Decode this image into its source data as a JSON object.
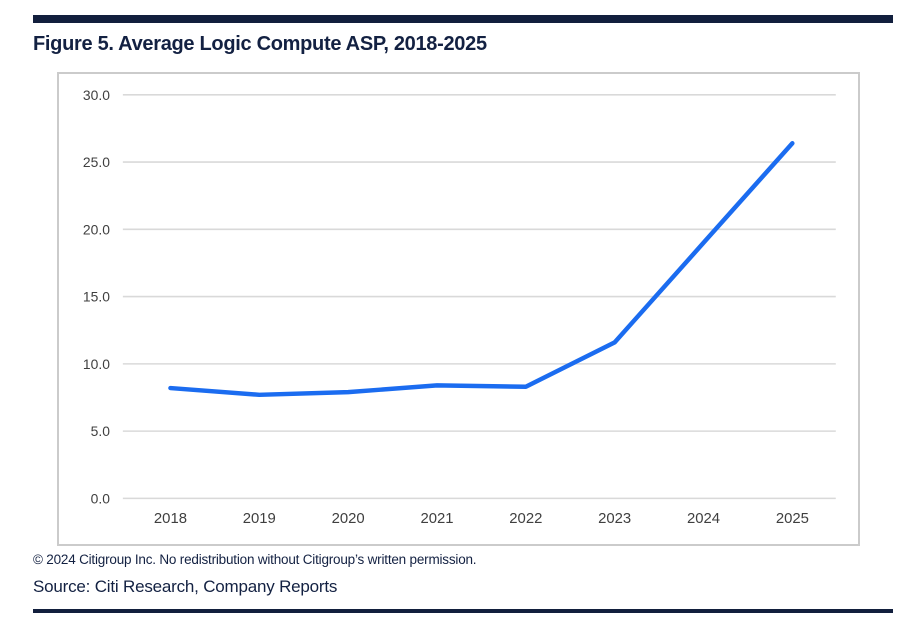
{
  "header": {
    "title": "Figure 5. Average Logic Compute ASP, 2018-2025"
  },
  "chart_data": {
    "type": "line",
    "title": "Figure 5. Average Logic Compute ASP, 2018-2025",
    "categories": [
      "2018",
      "2019",
      "2020",
      "2021",
      "2022",
      "2023",
      "2024",
      "2025"
    ],
    "series": [
      {
        "name": "Average Logic Compute ASP",
        "values": [
          8.2,
          7.7,
          7.9,
          8.4,
          8.3,
          11.6,
          19.0,
          26.4
        ]
      }
    ],
    "xlabel": "",
    "ylabel": "",
    "ylim": [
      0,
      30
    ],
    "y_ticks": [
      {
        "label": "30.0",
        "value": 30
      },
      {
        "label": "25.0",
        "value": 25
      },
      {
        "label": "20.0",
        "value": 20
      },
      {
        "label": "15.0",
        "value": 15
      },
      {
        "label": "10.0",
        "value": 10
      },
      {
        "label": "5.0",
        "value": 5
      },
      {
        "label": "0.0",
        "value": 0
      }
    ],
    "grid": "horizontal",
    "legend_position": "none",
    "line_color": "#1b6cf0",
    "line_width": 4.5
  },
  "footer": {
    "copyright": "© 2024 Citigroup Inc. No redistribution without Citigroup’s written permission.",
    "source": "Source: Citi Research, Company Reports"
  },
  "colors": {
    "accent_navy": "#121f3d",
    "title_navy": "#132142",
    "grid_gray": "#d9d9d9",
    "frame_gray": "#cbcbcb",
    "tick_text": "#3f3f3f",
    "line_blue": "#1b6cf0",
    "background": "#ffffff"
  }
}
